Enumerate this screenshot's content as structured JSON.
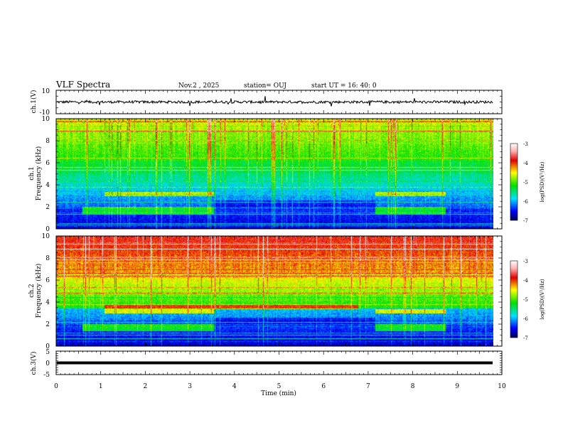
{
  "header": {
    "title": "VLF Spectra",
    "date": "Nov.2 , 2025",
    "station": "station= OUJ",
    "start": "start UT = 16: 40: 0"
  },
  "chart_data": {
    "type": "heatmap",
    "x_axis": {
      "label": "Time (min)",
      "range": [
        0,
        10
      ],
      "ticks": [
        "0",
        "1",
        "2",
        "3",
        "4",
        "5",
        "6",
        "7",
        "8",
        "9",
        "10"
      ]
    },
    "panels": [
      {
        "id": "ch1-waveform",
        "type": "line",
        "ylabel": "ch.1(V)",
        "ylim": [
          -10,
          10
        ],
        "ytick_labels": [
          "10",
          "-10"
        ],
        "baseline": 0,
        "data_end_min": 9.8
      },
      {
        "id": "ch1-spectrogram",
        "type": "heatmap",
        "ylabel_line1": "ch.1",
        "ylabel_line2": "Frequency (kHz)",
        "ylim": [
          0,
          10
        ],
        "ytick_labels": [
          "0",
          "2",
          "4",
          "6",
          "8",
          "10"
        ],
        "data_end_min": 9.8,
        "colorbar": {
          "label": "log(PSD)(V²/Hz)",
          "range": [
            -7,
            -3
          ],
          "tick_labels": [
            "-3",
            "-4",
            "-5",
            "-6",
            "-7"
          ]
        }
      },
      {
        "id": "ch2-spectrogram",
        "type": "heatmap",
        "ylabel_line1": "ch.2",
        "ylabel_line2": "Frequency (kHz)",
        "ylim": [
          0,
          10
        ],
        "ytick_labels": [
          "0",
          "2",
          "4",
          "6",
          "8",
          "10"
        ],
        "data_end_min": 9.8,
        "colorbar": {
          "label": "log(PSD)(V²/Hz)",
          "range": [
            -7,
            -3
          ],
          "tick_labels": [
            "-3",
            "-4",
            "-5",
            "-6",
            "-7"
          ]
        }
      },
      {
        "id": "ch3-waveform",
        "type": "line",
        "ylabel": "ch.3(V)",
        "ylim": [
          -5,
          5
        ],
        "ytick_labels": [
          "5",
          "0",
          "-5"
        ],
        "baseline": 0,
        "data_end_min": 9.8
      }
    ]
  }
}
